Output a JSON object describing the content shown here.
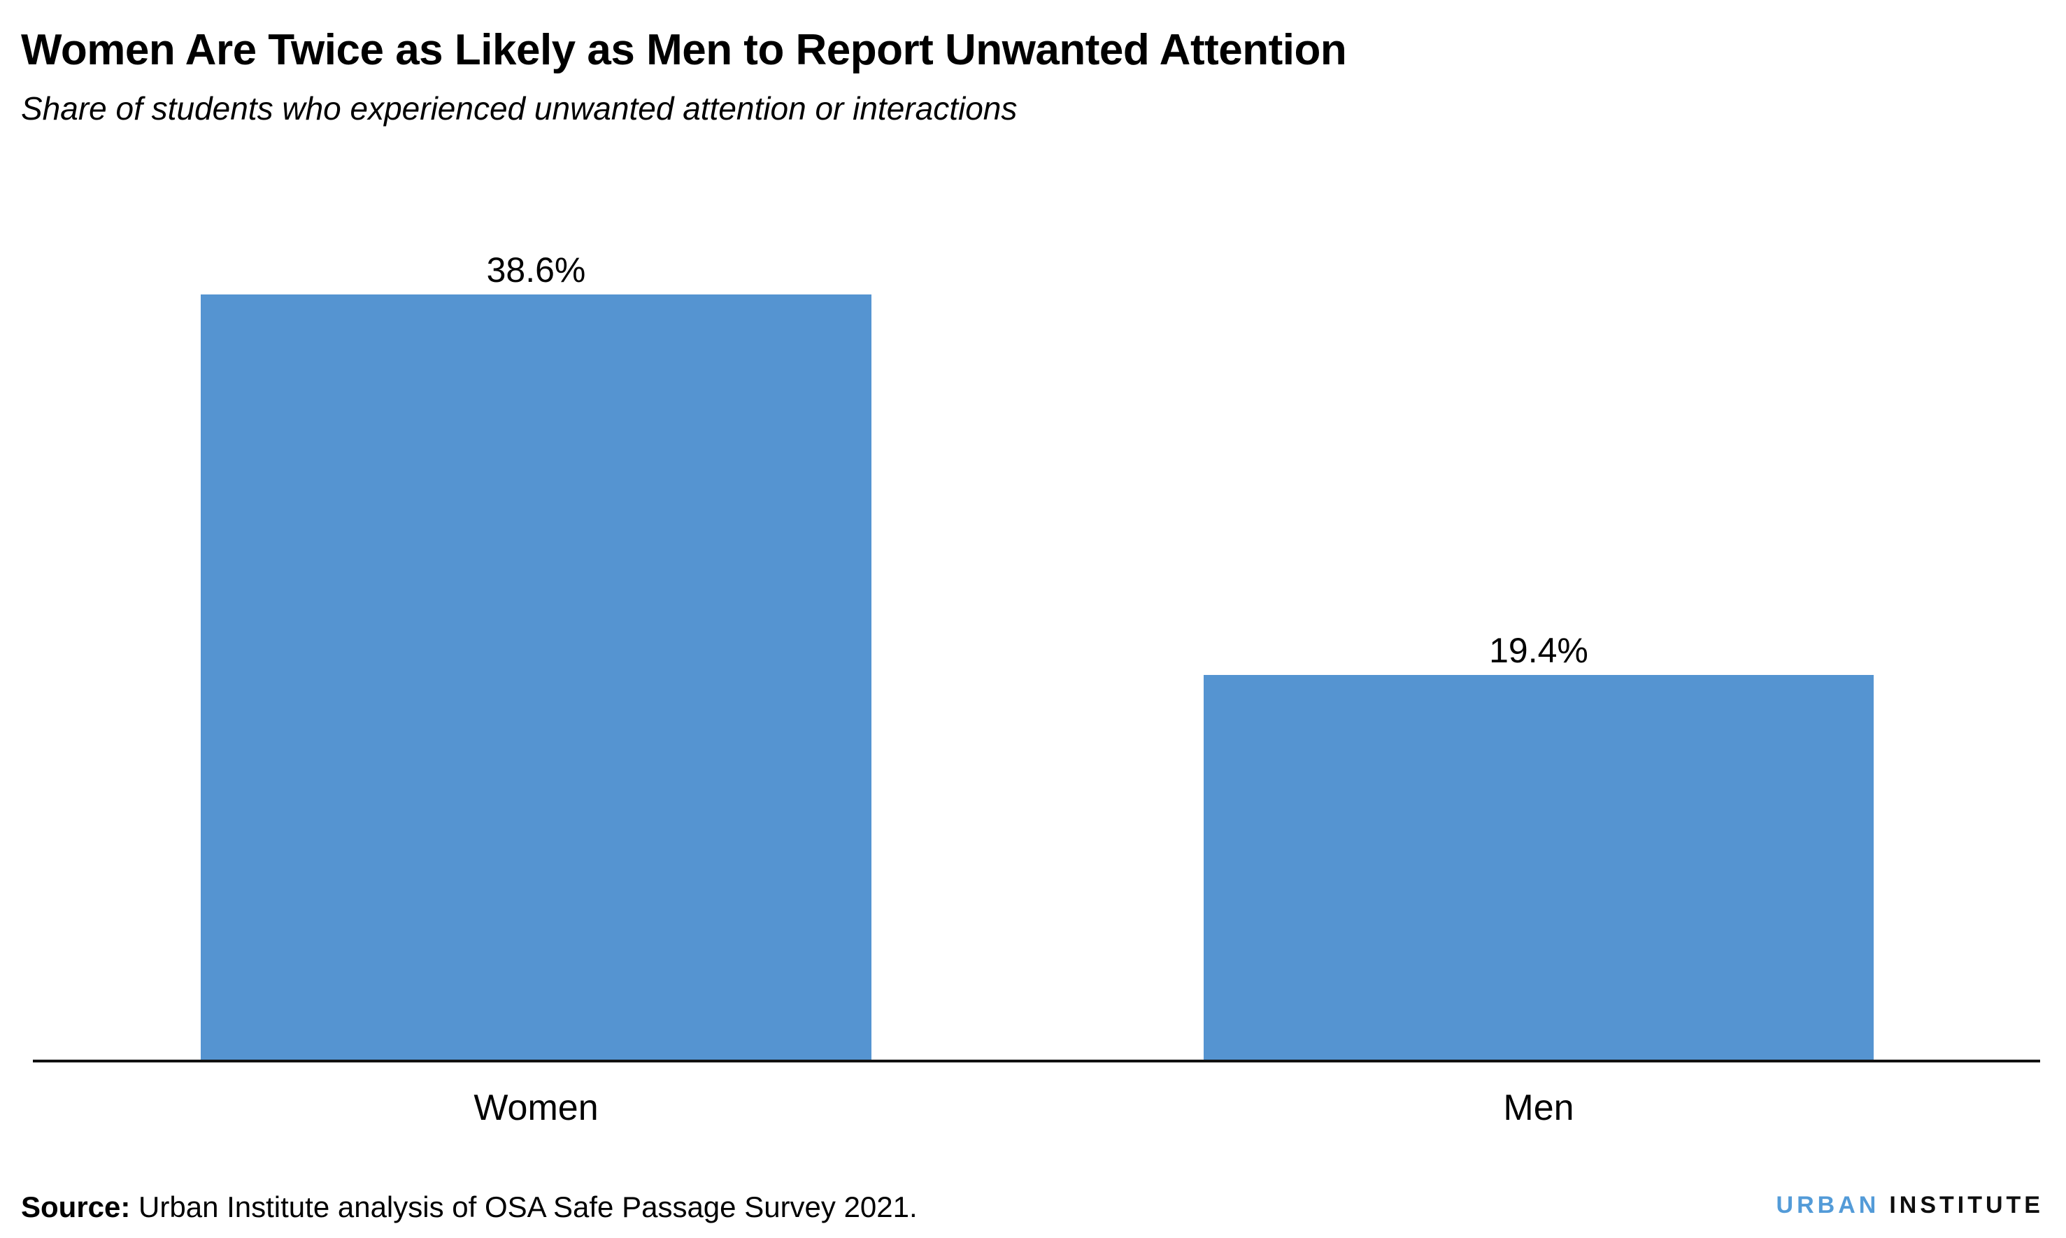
{
  "header": {
    "title": "Women Are Twice as Likely as Men to Report Unwanted Attention",
    "subtitle": "Share of students who experienced unwanted attention or interactions"
  },
  "chart_data": {
    "type": "bar",
    "title": "Women Are Twice as Likely as Men to Report Unwanted Attention",
    "subtitle": "Share of students who experienced unwanted attention or interactions",
    "categories": [
      "Women",
      "Men"
    ],
    "values": [
      38.6,
      19.4
    ],
    "value_labels": [
      "38.6%",
      "19.4%"
    ],
    "xlabel": "",
    "ylabel": "",
    "ylim": [
      0,
      40
    ],
    "grid": false,
    "legend": false,
    "y_axis_ticks_visible": false,
    "value_label_position": "above-bar",
    "bar_color": "#5594D1",
    "axis_line_color": "#111111",
    "background_color": "#ffffff"
  },
  "footer": {
    "source_label": "Source:",
    "source_text": " Urban Institute analysis of OSA Safe Passage Survey 2021.",
    "logo": {
      "part1": "URBAN",
      "part2": "INSTITUTE",
      "part1_color": "#539BD8",
      "part2_color": "#0E0E0E"
    }
  }
}
